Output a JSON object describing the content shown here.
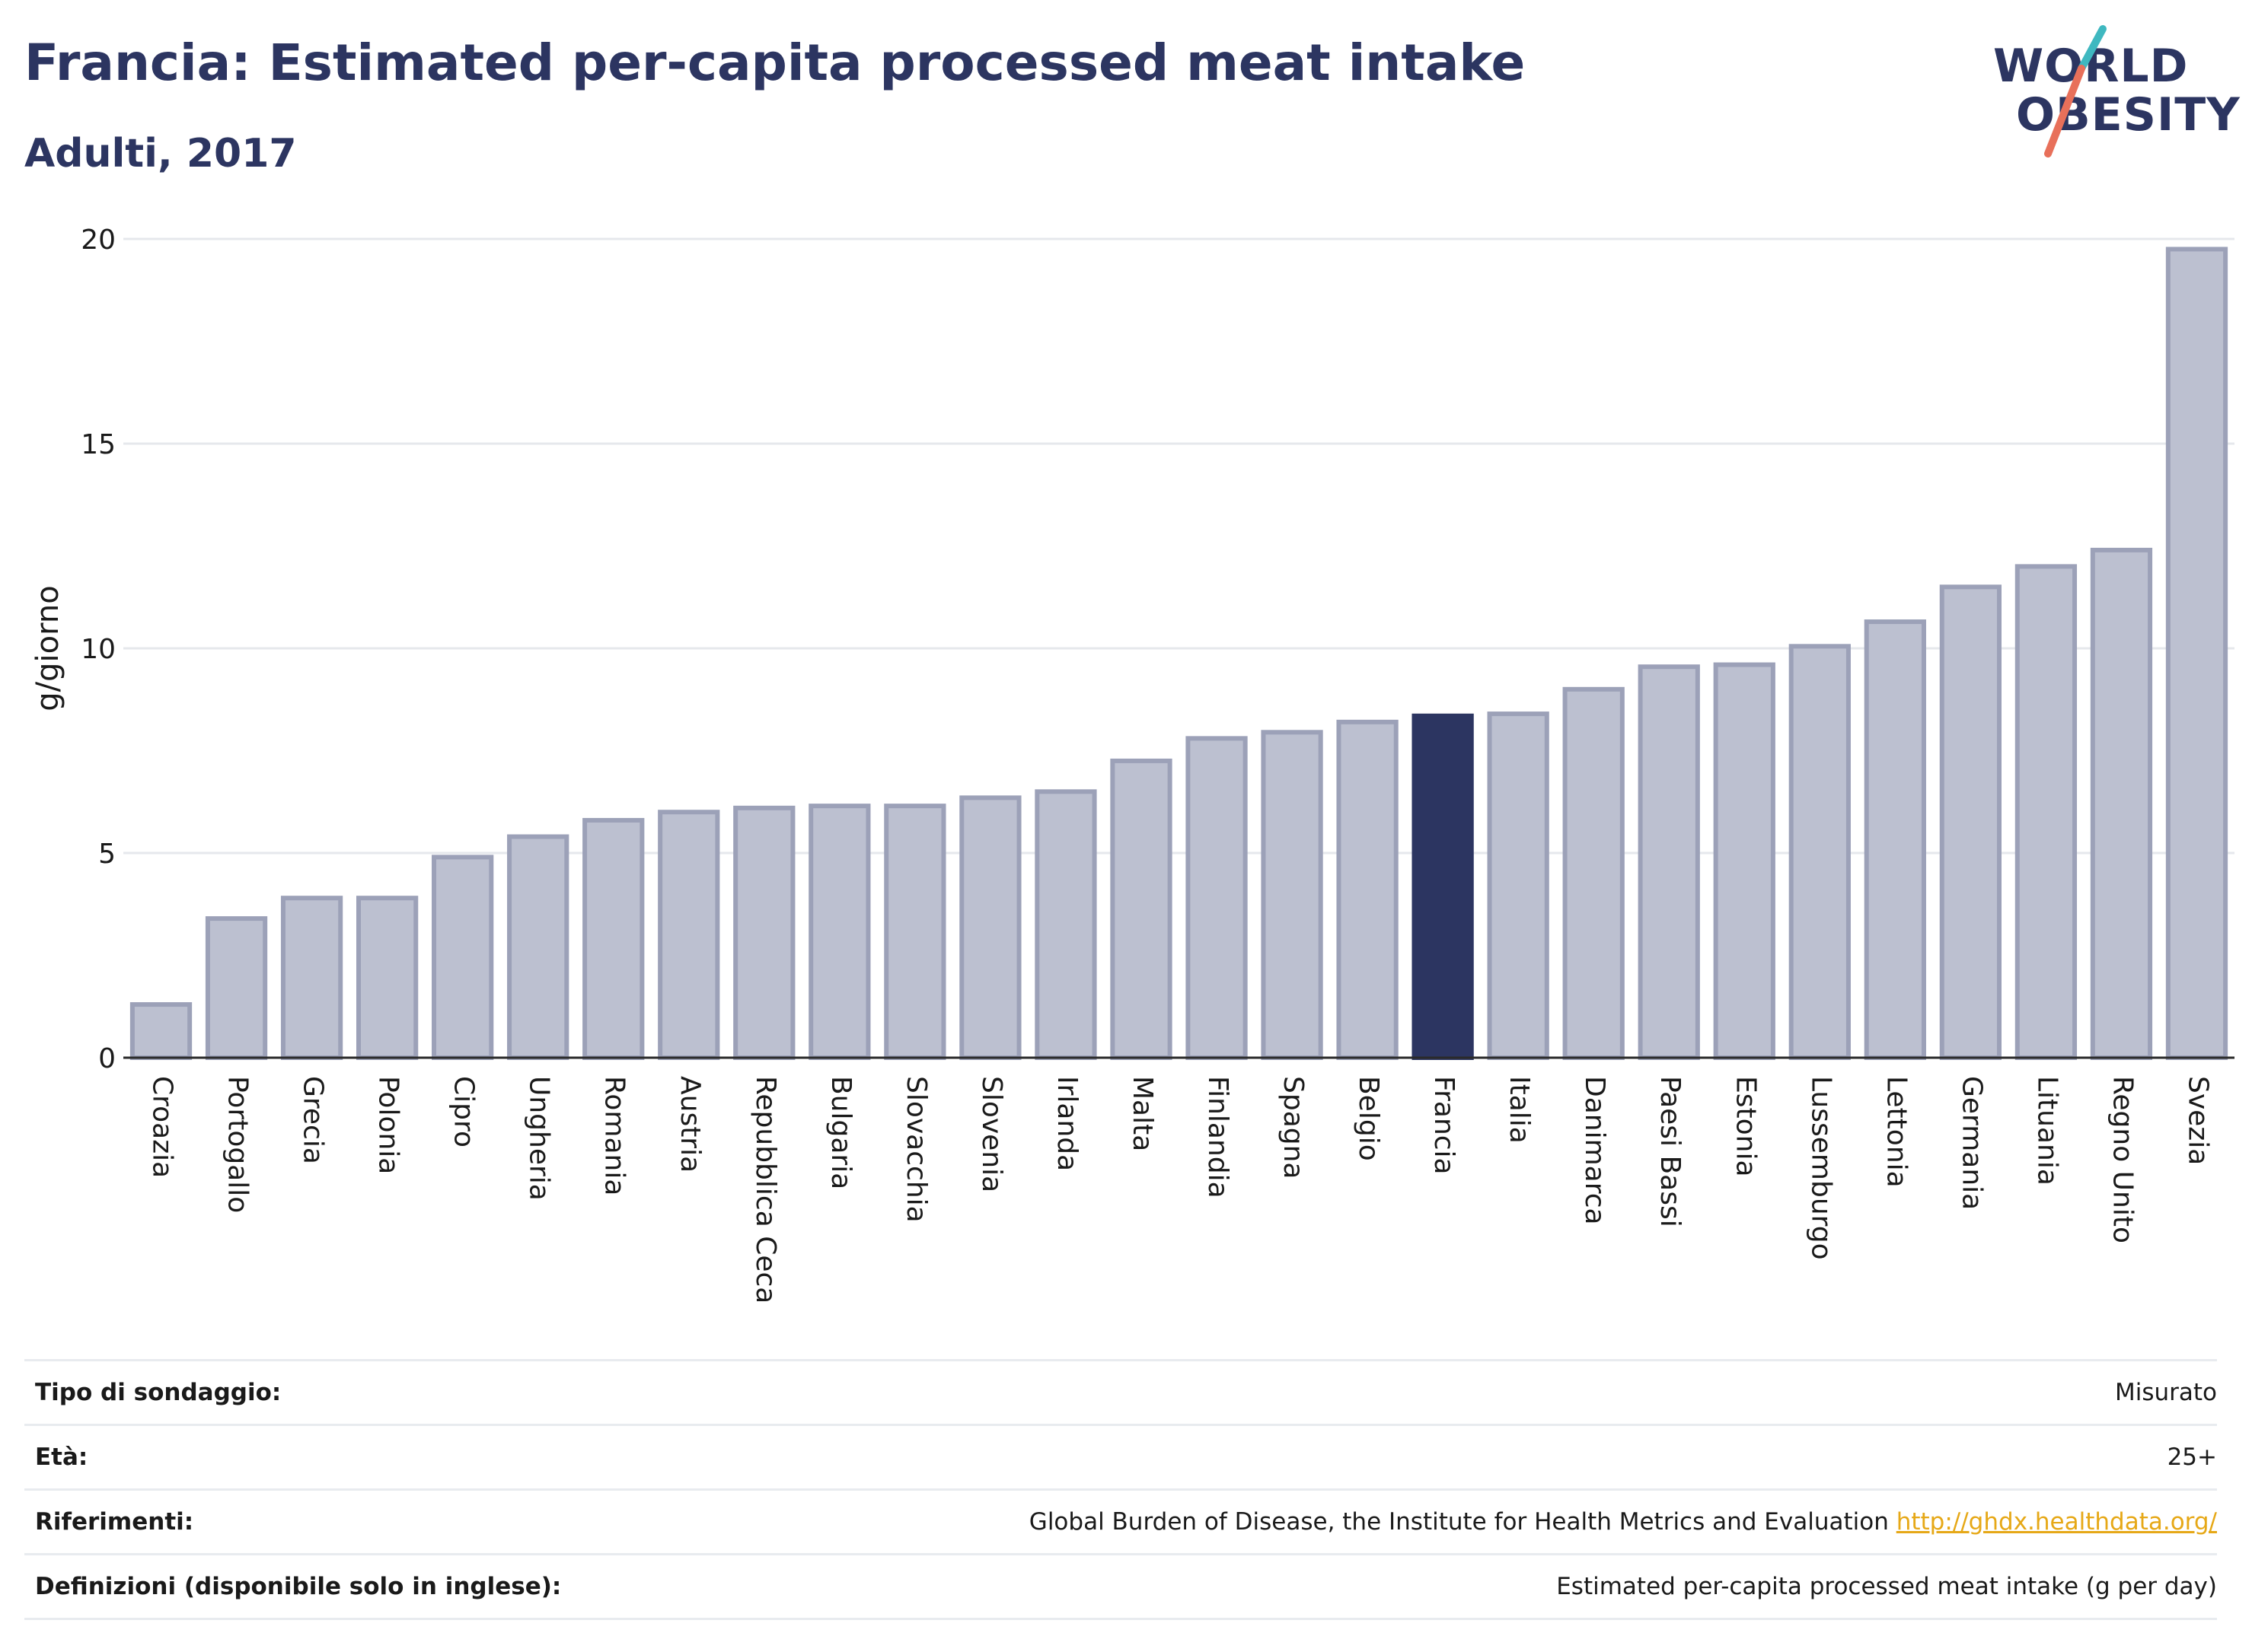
{
  "header": {
    "title": "Francia: Estimated per-capita processed meat intake",
    "subtitle": "Adulti, 2017"
  },
  "logo": {
    "line1": "WORLD",
    "line2": "OBESITY",
    "slash_colors": [
      "#3fb8c0",
      "#e8705a"
    ]
  },
  "colors": {
    "highlight": "#2c3561",
    "bar_fill": "#bcc0d0",
    "bar_stroke": "#9ca1b8",
    "grid": "#e6e8ec"
  },
  "chart_data": {
    "type": "bar",
    "ylabel": "g/giorno",
    "ylim": [
      0,
      20
    ],
    "yticks": [
      0,
      5,
      10,
      15,
      20
    ],
    "grid": true,
    "highlight": "Francia",
    "categories": [
      "Croazia",
      "Portogallo",
      "Grecia",
      "Polonia",
      "Cipro",
      "Ungheria",
      "Romania",
      "Austria",
      "Repubblica Ceca",
      "Bulgaria",
      "Slovacchia",
      "Slovenia",
      "Irlanda",
      "Malta",
      "Finlandia",
      "Spagna",
      "Belgio",
      "Francia",
      "Italia",
      "Danimarca",
      "Paesi Bassi",
      "Estonia",
      "Lussemburgo",
      "Lettonia",
      "Germania",
      "Lituania",
      "Regno Unito",
      "Svezia"
    ],
    "values": [
      1.3,
      3.4,
      3.9,
      3.9,
      4.9,
      5.4,
      5.8,
      6.0,
      6.1,
      6.15,
      6.15,
      6.35,
      6.5,
      7.25,
      7.8,
      7.95,
      8.2,
      8.35,
      8.4,
      9.0,
      9.55,
      9.6,
      10.05,
      10.65,
      11.5,
      12.0,
      12.4,
      19.75
    ]
  },
  "info": {
    "rows": [
      {
        "label": "Tipo di sondaggio:",
        "value": "Misurato"
      },
      {
        "label": "Età:",
        "value": "25+"
      },
      {
        "label": "Riferimenti:",
        "value": "Global Burden of Disease, the Institute for Health Metrics and Evaluation",
        "link": "http://ghdx.healthdata.org/"
      },
      {
        "label": "Definizioni (disponibile solo in inglese):",
        "value": "Estimated per-capita processed meat intake (g per day)"
      }
    ]
  }
}
